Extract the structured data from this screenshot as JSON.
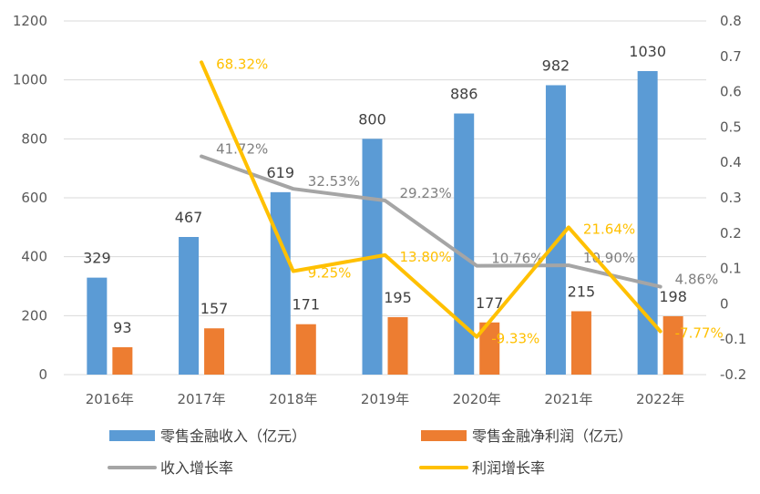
{
  "chart_data": {
    "type": "bar+line",
    "categories": [
      "2016年",
      "2017年",
      "2018年",
      "2019年",
      "2020年",
      "2021年",
      "2022年"
    ],
    "bar_series": [
      {
        "name": "零售金融收入（亿元）",
        "color": "#5B9BD5",
        "values": [
          329,
          467,
          619,
          800,
          886,
          982,
          1030
        ]
      },
      {
        "name": "零售金融净利润（亿元）",
        "color": "#ED7D31",
        "values": [
          93,
          157,
          171,
          195,
          177,
          215,
          198
        ]
      }
    ],
    "line_series": [
      {
        "name": "收入增长率",
        "color": "#A5A5A5",
        "values": [
          null,
          0.4172,
          0.3253,
          0.2923,
          0.1076,
          0.109,
          0.0486
        ],
        "labels": [
          "",
          "41.72%",
          "32.53%",
          "29.23%",
          "10.76%",
          "10.90%",
          "4.86%"
        ]
      },
      {
        "name": "利润增长率",
        "color": "#FFC000",
        "values": [
          null,
          0.6832,
          0.0925,
          0.138,
          -0.0933,
          0.2164,
          -0.0777
        ],
        "labels": [
          "",
          "68.32%",
          "9.25%",
          "13.80%",
          "-9.33%",
          "21.64%",
          "-7.77%"
        ]
      }
    ],
    "y_left": {
      "min": 0,
      "max": 1200,
      "ticks": [
        "0",
        "200",
        "400",
        "600",
        "800",
        "1000",
        "1200"
      ]
    },
    "y_right": {
      "min": -0.2,
      "max": 0.8,
      "ticks": [
        "-0.2",
        "-0.1",
        "0",
        "0.1",
        "0.2",
        "0.3",
        "0.4",
        "0.5",
        "0.6",
        "0.7",
        "0.8"
      ]
    },
    "grid": true,
    "legend_position": "bottom"
  }
}
